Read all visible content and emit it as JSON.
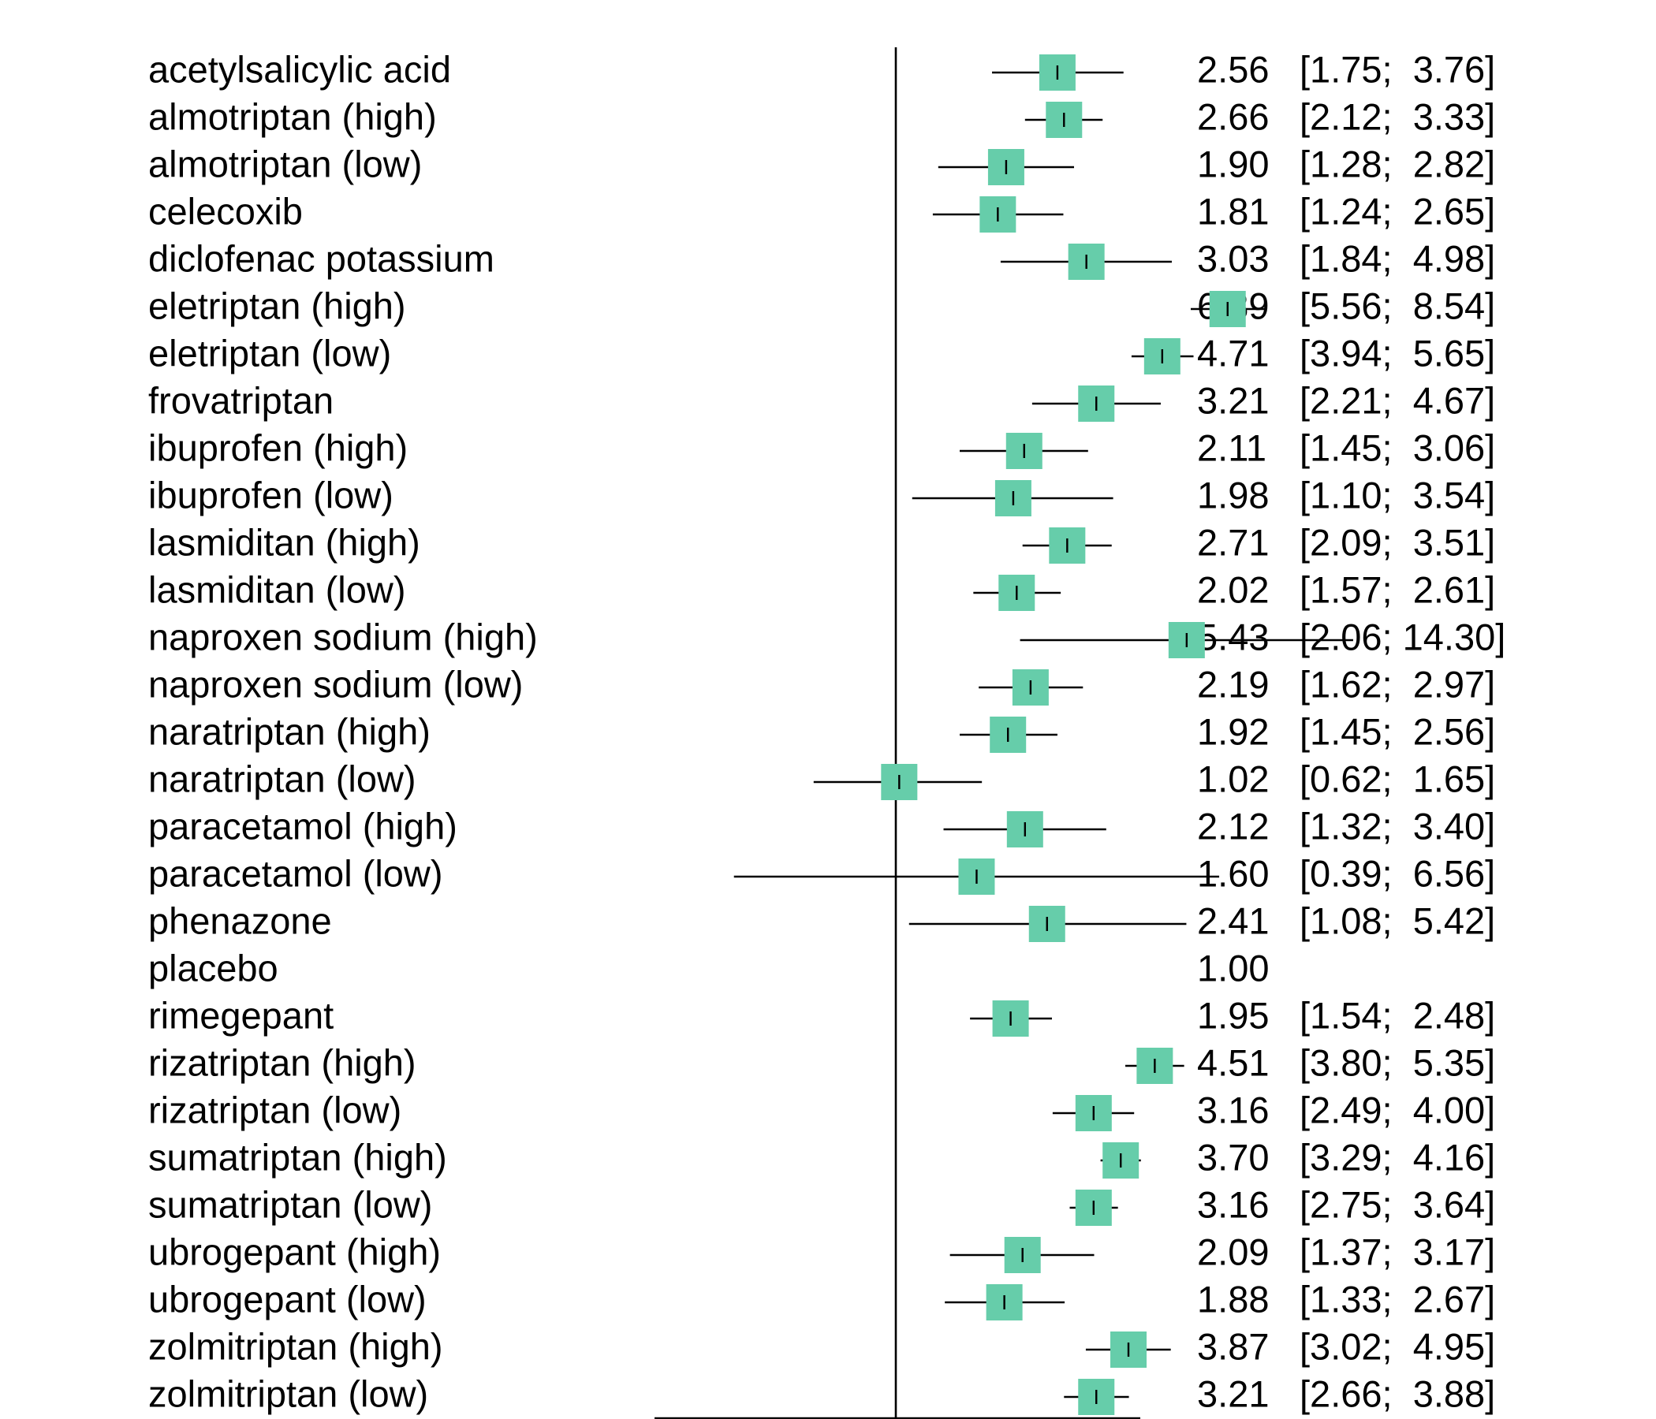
{
  "chart_data": {
    "type": "forest",
    "title": "",
    "xlabel": "",
    "ylabel": "",
    "x_scale": "log",
    "xlim": [
      0.3,
      15
    ],
    "reference_line": 1,
    "grid": false,
    "legend": "none",
    "colors": {
      "box": "#66CDAA",
      "ci": "#000000",
      "inner_tick_light": "#ffffff"
    },
    "rows": [
      {
        "label": "acetylsalicylic acid",
        "estimate": 2.56,
        "lower": 1.75,
        "upper": 3.76,
        "estimate_text": "2.56",
        "ci_text": "[1.75;  3.76]",
        "weight": 1.0
      },
      {
        "label": "almotriptan (high)",
        "estimate": 2.66,
        "lower": 2.12,
        "upper": 3.33,
        "estimate_text": "2.66",
        "ci_text": "[2.12;  3.33]",
        "weight": 1.0
      },
      {
        "label": "almotriptan (low)",
        "estimate": 1.9,
        "lower": 1.28,
        "upper": 2.82,
        "estimate_text": "1.90",
        "ci_text": "[1.28;  2.82]",
        "weight": 1.0
      },
      {
        "label": "celecoxib",
        "estimate": 1.81,
        "lower": 1.24,
        "upper": 2.65,
        "estimate_text": "1.81",
        "ci_text": "[1.24;  2.65]",
        "weight": 1.0
      },
      {
        "label": "diclofenac potassium",
        "estimate": 3.03,
        "lower": 1.84,
        "upper": 4.98,
        "estimate_text": "3.03",
        "ci_text": "[1.84;  4.98]",
        "weight": 1.0
      },
      {
        "label": "eletriptan (high)",
        "estimate": 6.89,
        "lower": 5.56,
        "upper": 8.54,
        "estimate_text": "6.89",
        "ci_text": "[5.56;  8.54]",
        "weight": 1.0
      },
      {
        "label": "eletriptan (low)",
        "estimate": 4.71,
        "lower": 3.94,
        "upper": 5.65,
        "estimate_text": "4.71",
        "ci_text": "[3.94;  5.65]",
        "weight": 1.0
      },
      {
        "label": "frovatriptan",
        "estimate": 3.21,
        "lower": 2.21,
        "upper": 4.67,
        "estimate_text": "3.21",
        "ci_text": "[2.21;  4.67]",
        "weight": 1.0
      },
      {
        "label": "ibuprofen (high)",
        "estimate": 2.11,
        "lower": 1.45,
        "upper": 3.06,
        "estimate_text": "2.11",
        "ci_text": "[1.45;  3.06]",
        "weight": 1.0
      },
      {
        "label": "ibuprofen (low)",
        "estimate": 1.98,
        "lower": 1.1,
        "upper": 3.54,
        "estimate_text": "1.98",
        "ci_text": "[1.10;  3.54]",
        "weight": 1.0
      },
      {
        "label": "lasmiditan (high)",
        "estimate": 2.71,
        "lower": 2.09,
        "upper": 3.51,
        "estimate_text": "2.71",
        "ci_text": "[2.09;  3.51]",
        "weight": 1.0
      },
      {
        "label": "lasmiditan (low)",
        "estimate": 2.02,
        "lower": 1.57,
        "upper": 2.61,
        "estimate_text": "2.02",
        "ci_text": "[1.57;  2.61]",
        "weight": 1.0
      },
      {
        "label": "naproxen sodium (high)",
        "estimate": 5.43,
        "lower": 2.06,
        "upper": 14.3,
        "estimate_text": "5.43",
        "ci_text": "[2.06; 14.30]",
        "weight": 1.0
      },
      {
        "label": "naproxen sodium (low)",
        "estimate": 2.19,
        "lower": 1.62,
        "upper": 2.97,
        "estimate_text": "2.19",
        "ci_text": "[1.62;  2.97]",
        "weight": 1.0
      },
      {
        "label": "naratriptan (high)",
        "estimate": 1.92,
        "lower": 1.45,
        "upper": 2.56,
        "estimate_text": "1.92",
        "ci_text": "[1.45;  2.56]",
        "weight": 1.0
      },
      {
        "label": "naratriptan (low)",
        "estimate": 1.02,
        "lower": 0.62,
        "upper": 1.65,
        "estimate_text": "1.02",
        "ci_text": "[0.62;  1.65]",
        "weight": 1.0
      },
      {
        "label": "paracetamol (high)",
        "estimate": 2.12,
        "lower": 1.32,
        "upper": 3.4,
        "estimate_text": "2.12",
        "ci_text": "[1.32;  3.40]",
        "weight": 1.0
      },
      {
        "label": "paracetamol (low)",
        "estimate": 1.6,
        "lower": 0.39,
        "upper": 6.56,
        "estimate_text": "1.60",
        "ci_text": "[0.39;  6.56]",
        "weight": 1.0
      },
      {
        "label": "phenazone",
        "estimate": 2.41,
        "lower": 1.08,
        "upper": 5.42,
        "estimate_text": "2.41",
        "ci_text": "[1.08;  5.42]",
        "weight": 1.0
      },
      {
        "label": "placebo",
        "estimate": 1.0,
        "lower": null,
        "upper": null,
        "estimate_text": "1.00",
        "ci_text": "",
        "weight": 0
      },
      {
        "label": "rimegepant",
        "estimate": 1.95,
        "lower": 1.54,
        "upper": 2.48,
        "estimate_text": "1.95",
        "ci_text": "[1.54;  2.48]",
        "weight": 1.0
      },
      {
        "label": "rizatriptan (high)",
        "estimate": 4.51,
        "lower": 3.8,
        "upper": 5.35,
        "estimate_text": "4.51",
        "ci_text": "[3.80;  5.35]",
        "weight": 1.0
      },
      {
        "label": "rizatriptan (low)",
        "estimate": 3.16,
        "lower": 2.49,
        "upper": 4.0,
        "estimate_text": "3.16",
        "ci_text": "[2.49;  4.00]",
        "weight": 1.0
      },
      {
        "label": "sumatriptan (high)",
        "estimate": 3.7,
        "lower": 3.29,
        "upper": 4.16,
        "estimate_text": "3.70",
        "ci_text": "[3.29;  4.16]",
        "weight": 1.0
      },
      {
        "label": "sumatriptan (low)",
        "estimate": 3.16,
        "lower": 2.75,
        "upper": 3.64,
        "estimate_text": "3.16",
        "ci_text": "[2.75;  3.64]",
        "weight": 1.0
      },
      {
        "label": "ubrogepant (high)",
        "estimate": 2.09,
        "lower": 1.37,
        "upper": 3.17,
        "estimate_text": "2.09",
        "ci_text": "[1.37;  3.17]",
        "weight": 1.0
      },
      {
        "label": "ubrogepant (low)",
        "estimate": 1.88,
        "lower": 1.33,
        "upper": 2.67,
        "estimate_text": "1.88",
        "ci_text": "[1.33;  2.67]",
        "weight": 1.0
      },
      {
        "label": "zolmitriptan (high)",
        "estimate": 3.87,
        "lower": 3.02,
        "upper": 4.95,
        "estimate_text": "3.87",
        "ci_text": "[3.02;  4.95]",
        "weight": 1.0
      },
      {
        "label": "zolmitriptan (low)",
        "estimate": 3.21,
        "lower": 2.66,
        "upper": 3.88,
        "estimate_text": "3.21",
        "ci_text": "[2.66;  3.88]",
        "weight": 1.0
      }
    ]
  }
}
